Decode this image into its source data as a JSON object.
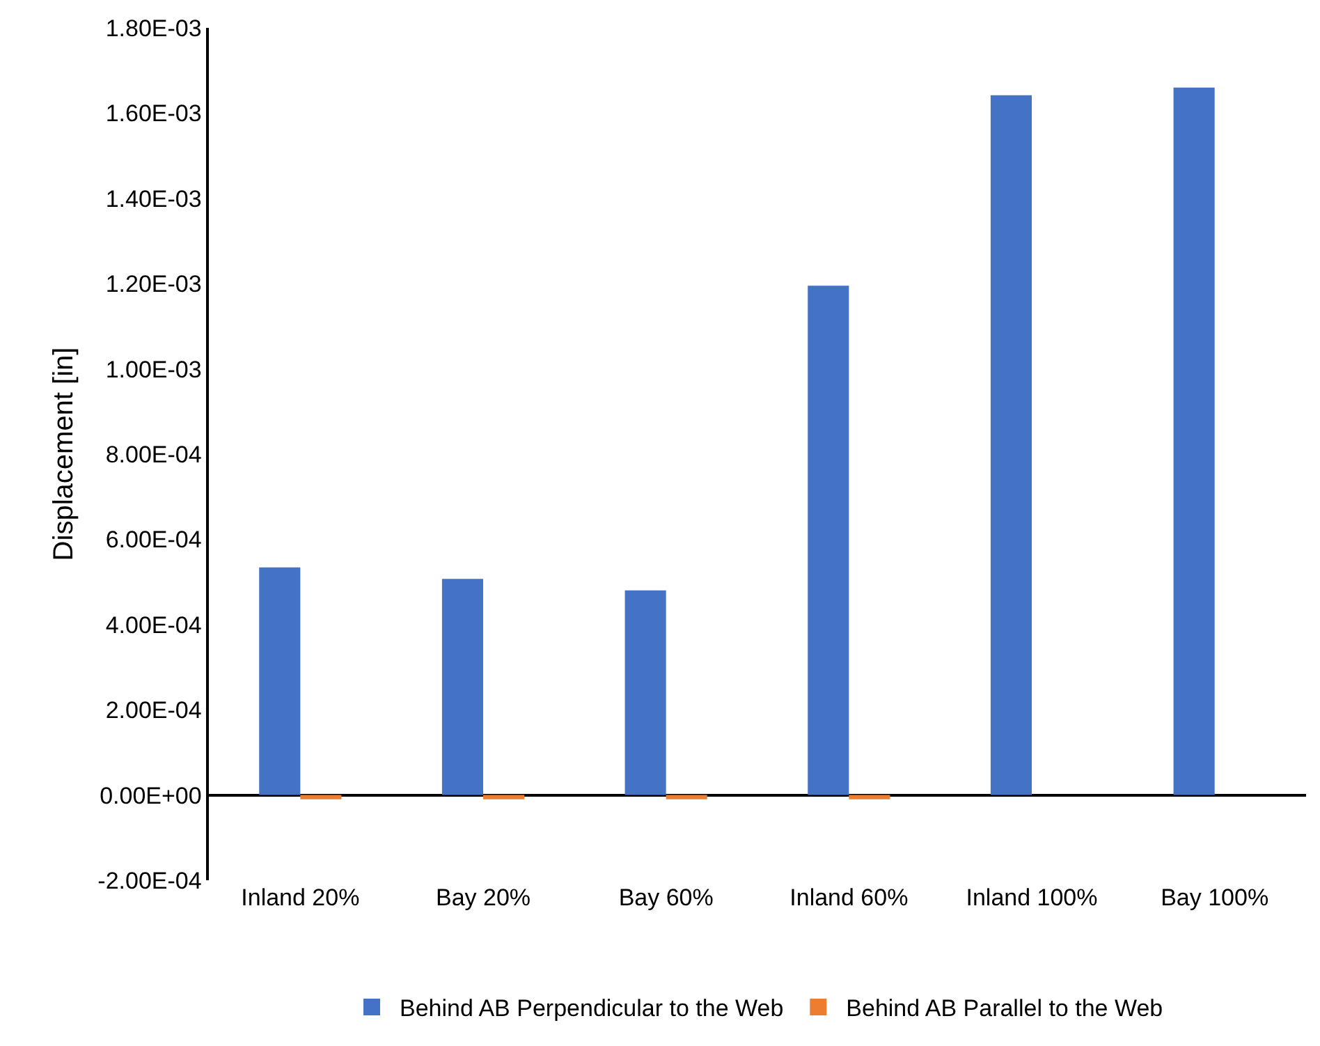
{
  "chart_data": {
    "type": "bar",
    "ylabel": "Displacement [in]",
    "categories": [
      "Inland 20%",
      "Bay 20%",
      "Bay 60%",
      "Inland 60%",
      "Inland 100%",
      "Bay 100%"
    ],
    "series": [
      {
        "name": "Behind AB Perpendicular to the Web",
        "color": "#4472c4",
        "values": [
          0.000534,
          0.000507,
          0.00048,
          0.001195,
          0.001642,
          0.00166
        ]
      },
      {
        "name": "Behind AB Parallel to the Web",
        "color": "#ed7d31",
        "values": [
          -1e-05,
          -1e-05,
          -1e-05,
          -1e-05,
          0,
          0
        ]
      }
    ],
    "ylim": [
      -0.0002,
      0.0018
    ],
    "yticks": [
      {
        "value": -0.0002,
        "label": "-2.00E-04"
      },
      {
        "value": 0,
        "label": "0.00E+00"
      },
      {
        "value": 0.0002,
        "label": "2.00E-04"
      },
      {
        "value": 0.0004,
        "label": "4.00E-04"
      },
      {
        "value": 0.0006,
        "label": "6.00E-04"
      },
      {
        "value": 0.0008,
        "label": "8.00E-04"
      },
      {
        "value": 0.001,
        "label": "1.00E-03"
      },
      {
        "value": 0.0012,
        "label": "1.20E-03"
      },
      {
        "value": 0.0014,
        "label": "1.40E-03"
      },
      {
        "value": 0.0016,
        "label": "1.60E-03"
      },
      {
        "value": 0.0018,
        "label": "1.80E-03"
      }
    ],
    "legend": "bottom"
  }
}
